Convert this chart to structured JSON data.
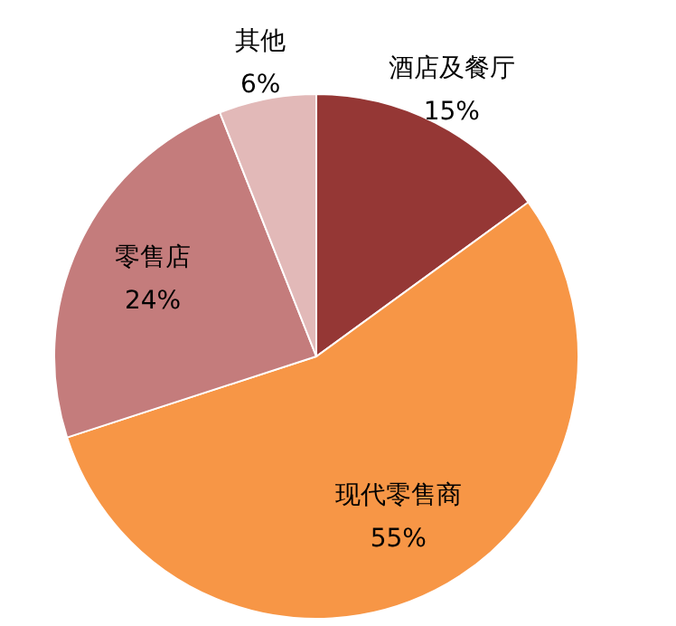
{
  "chart_data": {
    "type": "pie",
    "categories": [
      "酒店及餐厅",
      "现代零售商",
      "零售店",
      "其他"
    ],
    "values": [
      15,
      55,
      24,
      6
    ],
    "value_labels": [
      "15%",
      "55%",
      "24%",
      "6%"
    ],
    "colors": [
      "#953735",
      "#f79646",
      "#c47c7c",
      "#e2b9b8"
    ]
  }
}
